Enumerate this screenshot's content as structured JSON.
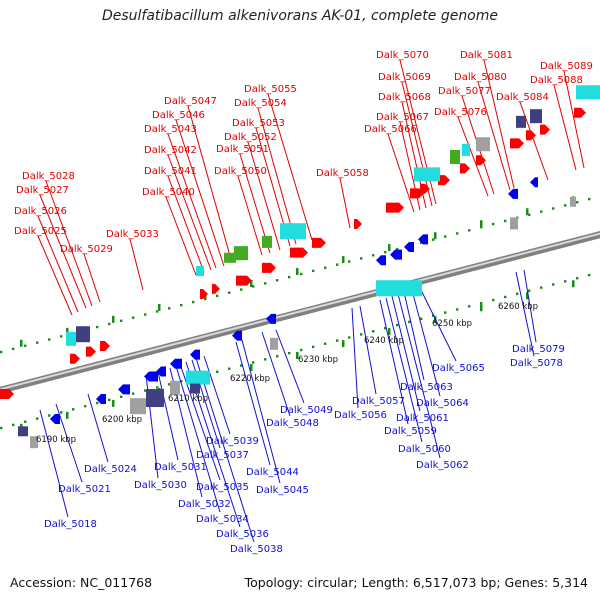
{
  "title": "Desulfatibacillum alkenivorans AK-01, complete genome",
  "footer": {
    "accession": "Accession: NC_011768",
    "summary": "Topology: circular; Length: 6,517,073 bp; Genes: 5,314"
  },
  "colors": {
    "forward_label": "#e00000",
    "reverse_label": "#1010d0",
    "forward_gene": "#ff0000",
    "reverse_gene": "#0000ee",
    "backbone": "#808080",
    "tick_mark": "#1a8a1a",
    "cog_cyan": "#22dddd",
    "cog_green": "#44aa22",
    "cog_navy": "#404080",
    "cog_gray": "#a0a0a0"
  },
  "scale_ticks": [
    "6190 kbp",
    "6200 kbp",
    "6210 kbp",
    "6220 kbp",
    "6230 kbp",
    "6240 kbp",
    "6250 kbp",
    "6260 kbp"
  ],
  "genes_top": [
    "Dalk_5025",
    "Dalk_5026",
    "Dalk_5027",
    "Dalk_5028",
    "Dalk_5029",
    "Dalk_5033",
    "Dalk_5040",
    "Dalk_5041",
    "Dalk_5042",
    "Dalk_5043",
    "Dalk_5046",
    "Dalk_5047",
    "Dalk_5050",
    "Dalk_5051",
    "Dalk_5052",
    "Dalk_5053",
    "Dalk_5054",
    "Dalk_5055",
    "Dalk_5058",
    "Dalk_5066",
    "Dalk_5067",
    "Dalk_5068",
    "Dalk_5069",
    "Dalk_5070",
    "Dalk_5076",
    "Dalk_5077",
    "Dalk_5080",
    "Dalk_5081",
    "Dalk_5084",
    "Dalk_5088",
    "Dalk_5089"
  ],
  "genes_bottom": [
    "Dalk_5018",
    "Dalk_5021",
    "Dalk_5024",
    "Dalk_5030",
    "Dalk_5031",
    "Dalk_5032",
    "Dalk_5034",
    "Dalk_5035",
    "Dalk_5036",
    "Dalk_5037",
    "Dalk_5038",
    "Dalk_5039",
    "Dalk_5044",
    "Dalk_5045",
    "Dalk_5048",
    "Dalk_5049",
    "Dalk_5056",
    "Dalk_5057",
    "Dalk_5059",
    "Dalk_5060",
    "Dalk_5061",
    "Dalk_5062",
    "Dalk_5063",
    "Dalk_5064",
    "Dalk_5065",
    "Dalk_5078",
    "Dalk_5079"
  ]
}
